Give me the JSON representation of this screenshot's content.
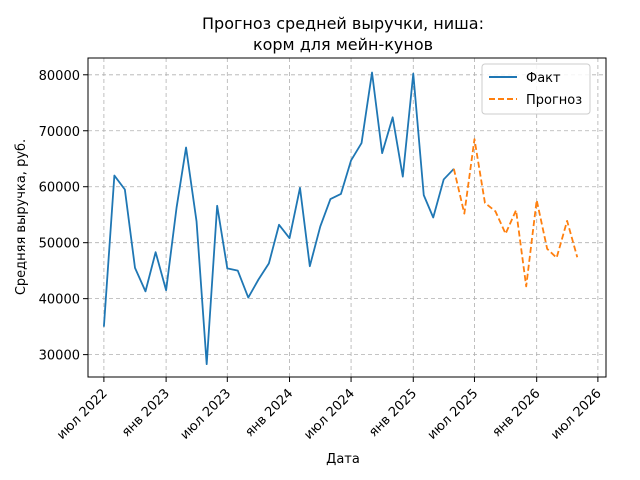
{
  "chart_data": {
    "type": "line",
    "title_lines": [
      "Прогноз средней выручки, ниша:",
      "корм для мейн-кунов"
    ],
    "xlabel": "Дата",
    "ylabel": "Средняя выручка, руб.",
    "x_ticks": [
      "июл 2022",
      "янв 2023",
      "июл 2023",
      "янв 2024",
      "июл 2024",
      "янв 2025",
      "июл 2025",
      "янв 2026",
      "июл 2026"
    ],
    "y_ticks": [
      "30000",
      "40000",
      "50000",
      "60000",
      "70000",
      "80000"
    ],
    "ylim": [
      26000,
      83000
    ],
    "xlim": [
      "2022-05-15",
      "2026-07-25"
    ],
    "grid": true,
    "legend_position": "top-right",
    "colors": {
      "fact": "#1f77b4",
      "forecast": "#ff7f0e"
    },
    "series": [
      {
        "name": "Факт",
        "style": "solid",
        "color": "#1f77b4",
        "points": [
          [
            "2022-07-01",
            35000
          ],
          [
            "2022-08-01",
            62000
          ],
          [
            "2022-09-01",
            59500
          ],
          [
            "2022-10-01",
            45500
          ],
          [
            "2022-11-01",
            41300
          ],
          [
            "2022-12-01",
            48300
          ],
          [
            "2023-01-01",
            41500
          ],
          [
            "2023-02-01",
            56300
          ],
          [
            "2023-03-01",
            67000
          ],
          [
            "2023-04-01",
            53800
          ],
          [
            "2023-05-01",
            28300
          ],
          [
            "2023-06-01",
            56600
          ],
          [
            "2023-07-01",
            45400
          ],
          [
            "2023-08-01",
            45000
          ],
          [
            "2023-09-01",
            40200
          ],
          [
            "2023-10-01",
            43400
          ],
          [
            "2023-11-01",
            46300
          ],
          [
            "2023-12-01",
            53200
          ],
          [
            "2024-01-01",
            50800
          ],
          [
            "2024-02-01",
            59800
          ],
          [
            "2024-03-01",
            45800
          ],
          [
            "2024-04-01",
            52900
          ],
          [
            "2024-05-01",
            57800
          ],
          [
            "2024-06-01",
            58700
          ],
          [
            "2024-07-01",
            64700
          ],
          [
            "2024-08-01",
            67800
          ],
          [
            "2024-09-01",
            80400
          ],
          [
            "2024-10-01",
            66000
          ],
          [
            "2024-11-01",
            72400
          ],
          [
            "2024-12-01",
            61800
          ],
          [
            "2025-01-01",
            80200
          ],
          [
            "2025-02-01",
            58500
          ],
          [
            "2025-03-01",
            54500
          ],
          [
            "2025-04-01",
            61300
          ],
          [
            "2025-05-01",
            63200
          ]
        ]
      },
      {
        "name": "Прогноз",
        "style": "dashed",
        "color": "#ff7f0e",
        "points": [
          [
            "2025-05-01",
            63200
          ],
          [
            "2025-06-01",
            55200
          ],
          [
            "2025-07-01",
            68500
          ],
          [
            "2025-08-01",
            57100
          ],
          [
            "2025-09-01",
            55600
          ],
          [
            "2025-10-01",
            51600
          ],
          [
            "2025-11-01",
            55800
          ],
          [
            "2025-12-01",
            42200
          ],
          [
            "2026-01-01",
            57600
          ],
          [
            "2026-02-01",
            48900
          ],
          [
            "2026-03-01",
            47300
          ],
          [
            "2026-04-01",
            53900
          ],
          [
            "2026-05-01",
            47400
          ]
        ]
      }
    ]
  }
}
